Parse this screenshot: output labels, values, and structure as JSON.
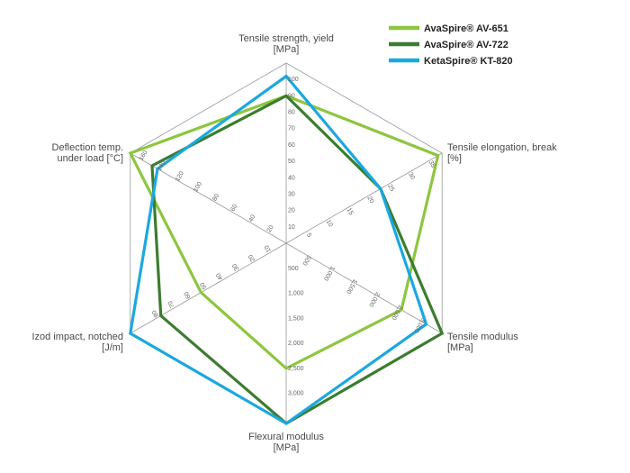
{
  "chart_data": {
    "type": "radar",
    "axes": [
      {
        "title": [
          "Tensile strength, yield",
          "[MPa]"
        ],
        "ticks": [
          "10",
          "20",
          "30",
          "40",
          "50",
          "60",
          "70",
          "80",
          "90",
          "100"
        ],
        "max": 110
      },
      {
        "title": [
          "Tensile elongation, break",
          "[%]"
        ],
        "ticks": [
          "5",
          "10",
          "15",
          "20",
          "25",
          "30",
          "35"
        ],
        "max": 38
      },
      {
        "title": [
          "Tensile modulus",
          "[MPa]"
        ],
        "ticks": [
          "500",
          "1,000",
          "1,500",
          "2,000",
          "2,500",
          "3,000"
        ],
        "max": 3450
      },
      {
        "title": [
          "Flexural modulus",
          "[MPa]"
        ],
        "ticks": [
          "500",
          "1,000",
          "1,500",
          "2,000",
          "2,500",
          "3,000"
        ],
        "max": 3600
      },
      {
        "title": [
          "Izod impact, notched",
          "[J/m]"
        ],
        "ticks": [
          "10",
          "20",
          "30",
          "40",
          "50",
          "60",
          "70",
          "80"
        ],
        "max": 97
      },
      {
        "title": [
          "Deflection temp.",
          "under load [°C]"
        ],
        "ticks": [
          "20",
          "40",
          "60",
          "80",
          "100",
          "120",
          "140",
          "160"
        ],
        "max": 172
      }
    ],
    "series": [
      {
        "name": "AvaSpire® AV-651",
        "color": "#8dc63f",
        "values": [
          90,
          37,
          2550,
          2500,
          53,
          172
        ]
      },
      {
        "name": "AvaSpire® AV-722",
        "color": "#3b7d2f",
        "values": [
          90,
          23,
          3450,
          3600,
          78,
          148
        ]
      },
      {
        "name": "KetaSpire® KT-820",
        "color": "#1ba8e0",
        "values": [
          102,
          23,
          3100,
          3600,
          97,
          142
        ]
      }
    ]
  }
}
